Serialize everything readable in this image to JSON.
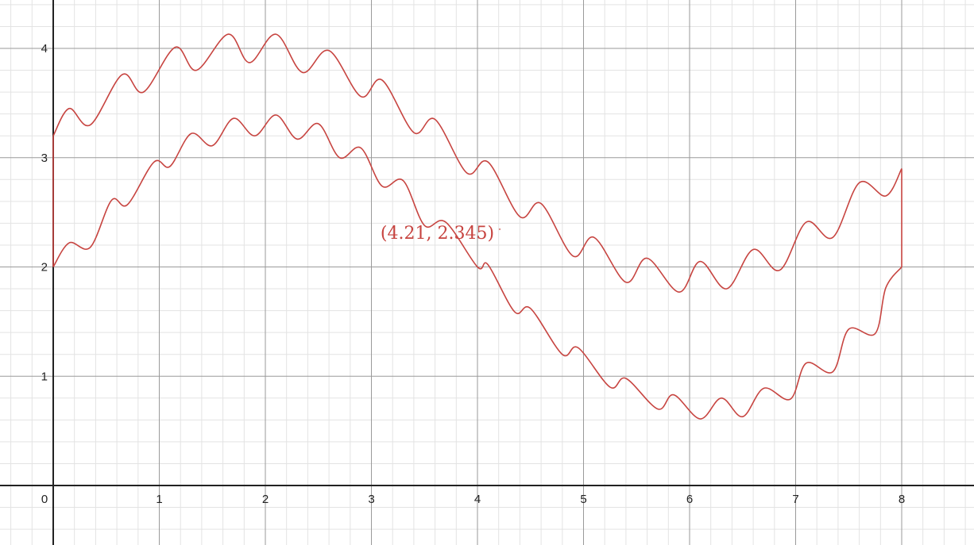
{
  "chart_data": {
    "type": "line",
    "title": "",
    "xlabel": "",
    "ylabel": "",
    "xlim": [
      -0.5,
      8.7
    ],
    "ylim": [
      -0.53,
      4.46
    ],
    "x_ticks": [
      "0",
      "1",
      "2",
      "3",
      "4",
      "5",
      "6",
      "7",
      "8"
    ],
    "y_ticks": [
      "1",
      "2",
      "3",
      "4"
    ],
    "grid": true,
    "minor_grid": true,
    "series": [
      {
        "color": "#c74440",
        "x": [
          0,
          0.15,
          0.35,
          0.65,
          0.85,
          1.15,
          1.35,
          1.65,
          1.85,
          2.1,
          2.35,
          2.6,
          2.9,
          3.1,
          3.4,
          3.6,
          3.9,
          4.1,
          4.4,
          4.6,
          4.9,
          5.1,
          5.4,
          5.6,
          5.9,
          6.1,
          6.35,
          6.6,
          6.85,
          7.1,
          7.35,
          7.6,
          7.85,
          8.0
        ],
        "y": [
          3.2,
          3.45,
          3.3,
          3.76,
          3.6,
          4.01,
          3.8,
          4.13,
          3.87,
          4.13,
          3.78,
          3.98,
          3.56,
          3.71,
          3.23,
          3.35,
          2.86,
          2.96,
          2.46,
          2.58,
          2.1,
          2.27,
          1.86,
          2.08,
          1.77,
          2.05,
          1.8,
          2.16,
          1.97,
          2.41,
          2.27,
          2.77,
          2.65,
          2.9
        ]
      },
      {
        "color": "#c74440",
        "x": [
          0,
          0.15,
          0.35,
          0.55,
          0.7,
          0.95,
          1.1,
          1.3,
          1.5,
          1.7,
          1.9,
          2.1,
          2.3,
          2.5,
          2.7,
          2.9,
          3.1,
          3.3,
          3.5,
          3.7,
          4.0,
          4.1,
          4.35,
          4.5,
          4.8,
          4.95,
          5.25,
          5.4,
          5.7,
          5.85,
          6.1,
          6.3,
          6.5,
          6.7,
          6.95,
          7.1,
          7.35,
          7.5,
          7.75,
          7.85,
          8.0
        ],
        "y": [
          2.0,
          2.22,
          2.18,
          2.61,
          2.57,
          2.96,
          2.92,
          3.22,
          3.11,
          3.36,
          3.2,
          3.39,
          3.17,
          3.31,
          3.0,
          3.09,
          2.74,
          2.79,
          2.38,
          2.41,
          2.0,
          2.02,
          1.59,
          1.62,
          1.2,
          1.26,
          0.9,
          0.98,
          0.7,
          0.83,
          0.61,
          0.8,
          0.63,
          0.89,
          0.79,
          1.12,
          1.04,
          1.43,
          1.39,
          1.81,
          2.0
        ]
      },
      {
        "color": "#c74440",
        "x": [
          0,
          0
        ],
        "y": [
          2.0,
          3.2
        ]
      },
      {
        "color": "#c74440",
        "x": [
          8.0,
          8.0
        ],
        "y": [
          2.0,
          2.9
        ]
      }
    ],
    "annotations": [
      {
        "text": "(4.21, 2.345)",
        "x": 4.21,
        "y": 2.345,
        "color": "#c74440"
      }
    ]
  }
}
